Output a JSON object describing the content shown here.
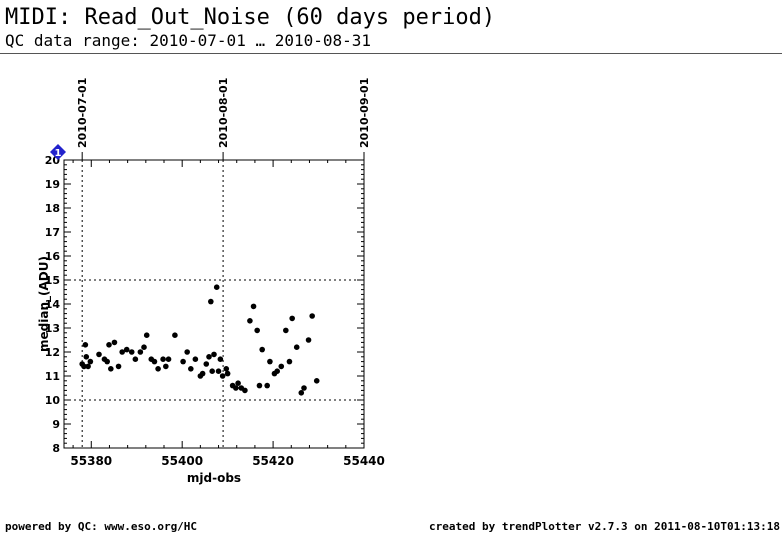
{
  "header": {
    "title": "MIDI: Read_Out_Noise (60 days period)",
    "subtitle": "QC data range: 2010-07-01 … 2010-08-31"
  },
  "footer": {
    "left": "powered by QC: www.eso.org/HC",
    "right": "created by trendPlotter v2.7.3 on 2011-08-10T01:13:18"
  },
  "chart_data": {
    "type": "scatter",
    "xlabel": "mjd-obs",
    "ylabel": "median_(ADU)",
    "xlim": [
      55374,
      55440
    ],
    "ylim": [
      8,
      20
    ],
    "x_ticks": [
      55380,
      55400,
      55420,
      55440
    ],
    "y_ticks": [
      8,
      9,
      10,
      11,
      12,
      13,
      14,
      15,
      16,
      17,
      18,
      19,
      20
    ],
    "top_date_labels": [
      {
        "label": "2010-07-01",
        "mjd": 55378
      },
      {
        "label": "2010-08-01",
        "mjd": 55409
      },
      {
        "label": "2010-09-01",
        "mjd": 55440
      }
    ],
    "thresholds": [
      10,
      15
    ],
    "marker_label": "1",
    "marker_color": "#2222cc",
    "point_color": "#000000",
    "points": [
      [
        55378.0,
        11.5
      ],
      [
        55378.4,
        11.4
      ],
      [
        55378.7,
        12.3
      ],
      [
        55378.9,
        11.8
      ],
      [
        55379.3,
        11.4
      ],
      [
        55379.8,
        11.6
      ],
      [
        55381.7,
        11.9
      ],
      [
        55382.9,
        11.7
      ],
      [
        55383.5,
        11.6
      ],
      [
        55383.9,
        12.3
      ],
      [
        55384.3,
        11.3
      ],
      [
        55385.1,
        12.4
      ],
      [
        55386.0,
        11.4
      ],
      [
        55386.8,
        12.0
      ],
      [
        55387.8,
        12.1
      ],
      [
        55388.9,
        12.0
      ],
      [
        55389.7,
        11.7
      ],
      [
        55390.8,
        12.0
      ],
      [
        55391.6,
        12.2
      ],
      [
        55392.2,
        12.7
      ],
      [
        55393.2,
        11.7
      ],
      [
        55393.9,
        11.6
      ],
      [
        55394.7,
        11.3
      ],
      [
        55395.8,
        11.7
      ],
      [
        55396.4,
        11.4
      ],
      [
        55397.0,
        11.7
      ],
      [
        55398.4,
        12.7
      ],
      [
        55400.2,
        11.6
      ],
      [
        55401.1,
        12.0
      ],
      [
        55401.9,
        11.3
      ],
      [
        55402.9,
        11.7
      ],
      [
        55404.0,
        11.0
      ],
      [
        55404.5,
        11.1
      ],
      [
        55405.3,
        11.5
      ],
      [
        55405.9,
        11.8
      ],
      [
        55406.3,
        14.1
      ],
      [
        55406.6,
        11.2
      ],
      [
        55407.0,
        11.9
      ],
      [
        55407.6,
        14.7
      ],
      [
        55408.0,
        11.2
      ],
      [
        55408.4,
        11.7
      ],
      [
        55408.9,
        11.0
      ],
      [
        55409.7,
        11.3
      ],
      [
        55410.0,
        11.1
      ],
      [
        55411.1,
        10.6
      ],
      [
        55411.8,
        10.5
      ],
      [
        55412.3,
        10.7
      ],
      [
        55413.0,
        10.5
      ],
      [
        55413.8,
        10.4
      ],
      [
        55414.9,
        13.3
      ],
      [
        55415.7,
        13.9
      ],
      [
        55416.5,
        12.9
      ],
      [
        55417.0,
        10.6
      ],
      [
        55417.6,
        12.1
      ],
      [
        55418.7,
        10.6
      ],
      [
        55419.3,
        11.6
      ],
      [
        55420.3,
        11.1
      ],
      [
        55420.9,
        11.2
      ],
      [
        55421.8,
        11.4
      ],
      [
        55422.8,
        12.9
      ],
      [
        55423.6,
        11.6
      ],
      [
        55424.2,
        13.4
      ],
      [
        55425.2,
        12.2
      ],
      [
        55426.2,
        10.3
      ],
      [
        55426.8,
        10.5
      ],
      [
        55427.8,
        12.5
      ],
      [
        55428.6,
        13.5
      ],
      [
        55429.6,
        10.8
      ]
    ]
  }
}
